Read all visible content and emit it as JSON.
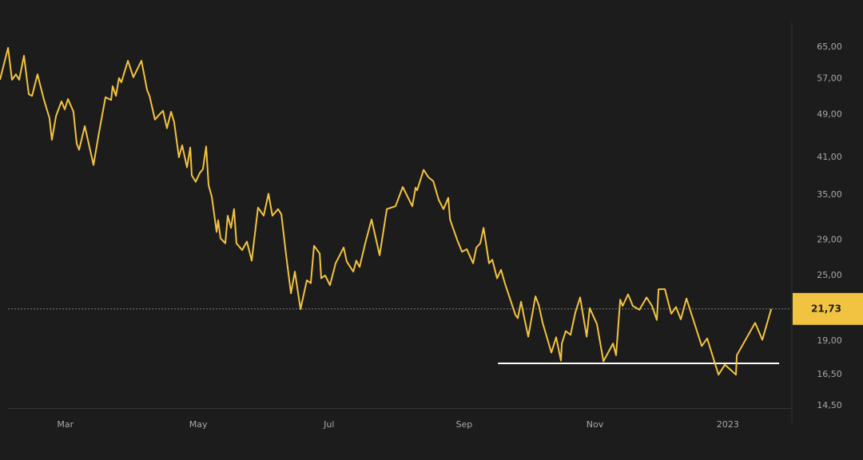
{
  "chart_data": {
    "type": "line",
    "color": "#f2c341",
    "log_scale": true,
    "grid": false,
    "xlim": [
      -2,
      361
    ],
    "ylim": [
      14.3,
      72.1
    ],
    "xticks": [
      {
        "value": 28,
        "label": "Mar"
      },
      {
        "value": 89,
        "label": "May"
      },
      {
        "value": 149,
        "label": "Jul"
      },
      {
        "value": 211,
        "label": "Sep"
      },
      {
        "value": 271,
        "label": "Nov"
      },
      {
        "value": 332,
        "label": "2023"
      }
    ],
    "yticks": [
      {
        "value": 65,
        "label": "65,00"
      },
      {
        "value": 57,
        "label": "57,00"
      },
      {
        "value": 49,
        "label": "49,00"
      },
      {
        "value": 41,
        "label": "41,00"
      },
      {
        "value": 35,
        "label": "35,00"
      },
      {
        "value": 29,
        "label": "29,00"
      },
      {
        "value": 25,
        "label": "25,00"
      },
      {
        "value": 19,
        "label": "19,00"
      },
      {
        "value": 16.5,
        "label": "16,50"
      },
      {
        "value": 14.5,
        "label": "14,50"
      }
    ],
    "last_price": {
      "value": 21.73,
      "label": "21,73"
    },
    "support_line": {
      "value": 17.3,
      "start": 226.5,
      "end": 355.5
    },
    "x": [
      -2.0,
      1.7,
      3.5,
      5.3,
      6.8,
      9.0,
      11.2,
      12.7,
      15.2,
      18.2,
      20.7,
      21.8,
      23.7,
      26.2,
      27.7,
      29.2,
      31.7,
      33.2,
      34.3,
      36.9,
      39.1,
      40.9,
      43.5,
      46.4,
      49.0,
      49.7,
      51.2,
      52.6,
      53.7,
      56.7,
      59.2,
      62.9,
      65.5,
      66.6,
      69.1,
      71.3,
      72.8,
      74.6,
      76.5,
      77.9,
      80.1,
      81.6,
      83.8,
      85.3,
      86.0,
      87.8,
      89.7,
      91.1,
      92.6,
      93.7,
      95.2,
      97.4,
      98.1,
      99.2,
      101.4,
      102.5,
      104.0,
      105.4,
      106.5,
      109.1,
      111.3,
      113.5,
      116.4,
      119.0,
      121.2,
      123.0,
      125.6,
      127.1,
      129.3,
      131.5,
      133.3,
      135.9,
      138.8,
      140.6,
      142.1,
      144.7,
      145.4,
      147.2,
      149.4,
      152.0,
      155.7,
      157.1,
      160.1,
      161.5,
      163.0,
      165.6,
      168.5,
      172.2,
      175.5,
      179.5,
      182.8,
      187.2,
      188.7,
      189.4,
      192.4,
      194.6,
      196.8,
      199.3,
      201.5,
      203.7,
      204.5,
      207.8,
      210.0,
      212.2,
      215.1,
      216.6,
      218.4,
      219.9,
      222.4,
      223.9,
      226.1,
      227.9,
      229.8,
      234.5,
      235.6,
      237.1,
      238.6,
      240.4,
      243.7,
      245.2,
      247.0,
      251.0,
      253.2,
      255.4,
      255.8,
      257.6,
      259.8,
      262.0,
      264.2,
      267.2,
      268.6,
      271.9,
      274.9,
      279.3,
      280.7,
      282.6,
      283.7,
      286.2,
      288.4,
      291.4,
      294.7,
      297.2,
      299.4,
      300.2,
      303.1,
      306.0,
      308.2,
      310.4,
      313.0,
      315.9,
      320.0,
      322.5,
      327.7,
      330.6,
      332.8,
      335.7,
      336.1,
      344.5,
      347.8,
      351.9
    ],
    "values": [
      56.7,
      64.8,
      56.7,
      58.0,
      56.7,
      62.7,
      53.4,
      53.0,
      58.0,
      52.1,
      48.3,
      44.1,
      48.7,
      51.8,
      50.1,
      52.3,
      49.6,
      43.4,
      42.3,
      46.7,
      42.7,
      39.7,
      45.6,
      52.7,
      52.1,
      55.2,
      53.0,
      57.1,
      56.1,
      61.4,
      57.3,
      61.4,
      54.3,
      53.0,
      48.0,
      49.1,
      49.8,
      46.3,
      49.6,
      47.5,
      41.0,
      43.1,
      39.3,
      42.7,
      38.0,
      37.0,
      38.4,
      39.0,
      42.9,
      36.5,
      34.7,
      30.0,
      31.5,
      29.2,
      28.6,
      32.1,
      30.5,
      33.0,
      28.6,
      27.8,
      28.8,
      26.6,
      33.2,
      32.1,
      35.2,
      32.1,
      33.0,
      32.3,
      27.2,
      23.2,
      25.4,
      21.7,
      24.5,
      24.2,
      28.3,
      27.4,
      24.7,
      25.0,
      24.0,
      26.3,
      28.1,
      26.5,
      25.4,
      26.6,
      25.9,
      28.6,
      31.6,
      27.2,
      33.0,
      33.4,
      36.2,
      33.4,
      36.1,
      35.7,
      38.9,
      37.7,
      37.1,
      34.3,
      33.0,
      34.6,
      31.6,
      29.0,
      27.6,
      27.9,
      26.3,
      28.1,
      28.6,
      30.5,
      26.3,
      26.7,
      24.7,
      25.6,
      24.1,
      21.2,
      20.9,
      22.4,
      20.9,
      19.35,
      22.9,
      22.1,
      20.5,
      18.1,
      19.3,
      17.5,
      18.8,
      19.8,
      19.5,
      21.4,
      22.8,
      19.35,
      21.8,
      20.4,
      17.45,
      18.8,
      17.9,
      22.6,
      22.0,
      23.1,
      22.0,
      21.65,
      22.8,
      22.0,
      20.75,
      23.6,
      23.6,
      21.3,
      21.9,
      20.8,
      22.7,
      20.9,
      18.6,
      19.2,
      16.5,
      17.2,
      16.9,
      16.5,
      17.9,
      20.5,
      19.1,
      21.73
    ]
  }
}
